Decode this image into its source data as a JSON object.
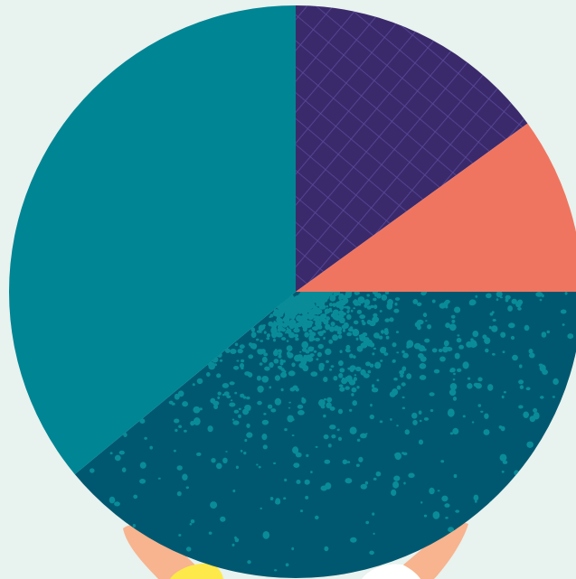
{
  "illustration": {
    "subject": "pie-chart-held-by-hands",
    "background_color": "#e8f2ee"
  },
  "pie": {
    "segments": [
      {
        "name": "segment-purple-grid",
        "fraction": 0.15,
        "color": "#3b2a6b",
        "pattern": "grid-lines",
        "pattern_color": "#5a4a9c"
      },
      {
        "name": "segment-coral",
        "fraction": 0.1,
        "color": "#f07560",
        "pattern": "none"
      },
      {
        "name": "segment-dark-teal-speckled",
        "fraction": 0.39,
        "color": "#005870",
        "pattern": "speckles",
        "pattern_color": "#0a8c98"
      },
      {
        "name": "segment-teal",
        "fraction": 0.36,
        "color": "#008594",
        "pattern": "none"
      }
    ]
  },
  "hands": {
    "skin_color": "#f7b48f",
    "left_sleeve_color": "#fde94a",
    "right_sleeve_color": "#ffffff"
  }
}
